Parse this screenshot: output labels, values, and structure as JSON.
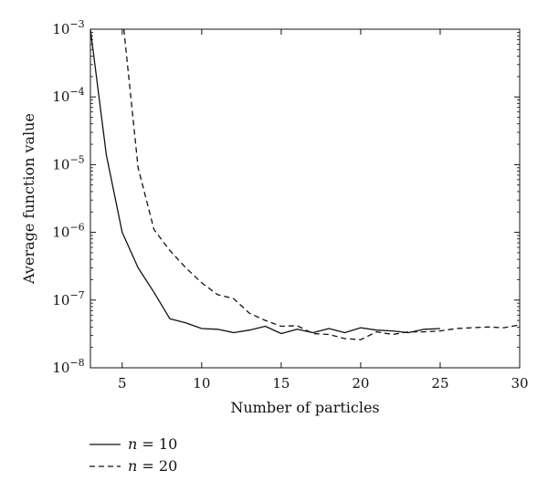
{
  "chart_data": {
    "type": "line",
    "title": "",
    "xlabel": "Number of particles",
    "ylabel": "Average function value",
    "xlim": [
      3,
      30
    ],
    "ylim": [
      1e-08,
      0.001
    ],
    "yscale": "log",
    "grid": false,
    "legend_position": "bottom-left",
    "x_ticks": [
      {
        "value": 5,
        "label": "5"
      },
      {
        "value": 10,
        "label": "10"
      },
      {
        "value": 15,
        "label": "15"
      },
      {
        "value": 20,
        "label": "20"
      },
      {
        "value": 25,
        "label": "25"
      },
      {
        "value": 30,
        "label": "30"
      }
    ],
    "y_ticks": [
      {
        "value": 1e-08,
        "base": "10",
        "exp": "−8"
      },
      {
        "value": 1e-07,
        "base": "10",
        "exp": "−7"
      },
      {
        "value": 1e-06,
        "base": "10",
        "exp": "−6"
      },
      {
        "value": 1e-05,
        "base": "10",
        "exp": "−5"
      },
      {
        "value": 0.0001,
        "base": "10",
        "exp": "−4"
      },
      {
        "value": 0.001,
        "base": "10",
        "exp": "−3"
      }
    ],
    "series": [
      {
        "name": "n = 10",
        "legend_var": "n",
        "legend_rest": " = 10",
        "style": "solid",
        "x": [
          3,
          4,
          5,
          6,
          7,
          8,
          9,
          10,
          11,
          12,
          13,
          14,
          15,
          16,
          17,
          18,
          19,
          20,
          21,
          22,
          23,
          24,
          25
        ],
        "y": [
          0.001,
          1.4e-05,
          1e-06,
          3e-07,
          1.3e-07,
          5.3e-08,
          4.6e-08,
          3.8e-08,
          3.7e-08,
          3.3e-08,
          3.6e-08,
          4.1e-08,
          3.2e-08,
          3.7e-08,
          3.3e-08,
          3.8e-08,
          3.3e-08,
          3.9e-08,
          3.6e-08,
          3.5e-08,
          3.3e-08,
          3.7e-08,
          3.8e-08
        ]
      },
      {
        "name": "n = 20",
        "legend_var": "n",
        "legend_rest": " = 20",
        "style": "dashed",
        "x": [
          5.1,
          6,
          7,
          8,
          9,
          10,
          11,
          12,
          13,
          14,
          15,
          16,
          17,
          18,
          19,
          20,
          21,
          22,
          23,
          24,
          25,
          26,
          27,
          28,
          29,
          30
        ],
        "y": [
          0.001,
          9e-06,
          1.1e-06,
          5.4e-07,
          3e-07,
          1.8e-07,
          1.2e-07,
          1.05e-07,
          6.4e-08,
          5e-08,
          4.1e-08,
          4.2e-08,
          3.2e-08,
          3.1e-08,
          2.7e-08,
          2.6e-08,
          3.4e-08,
          3.1e-08,
          3.4e-08,
          3.4e-08,
          3.5e-08,
          3.8e-08,
          3.9e-08,
          4e-08,
          3.9e-08,
          4.3e-08
        ]
      }
    ]
  }
}
